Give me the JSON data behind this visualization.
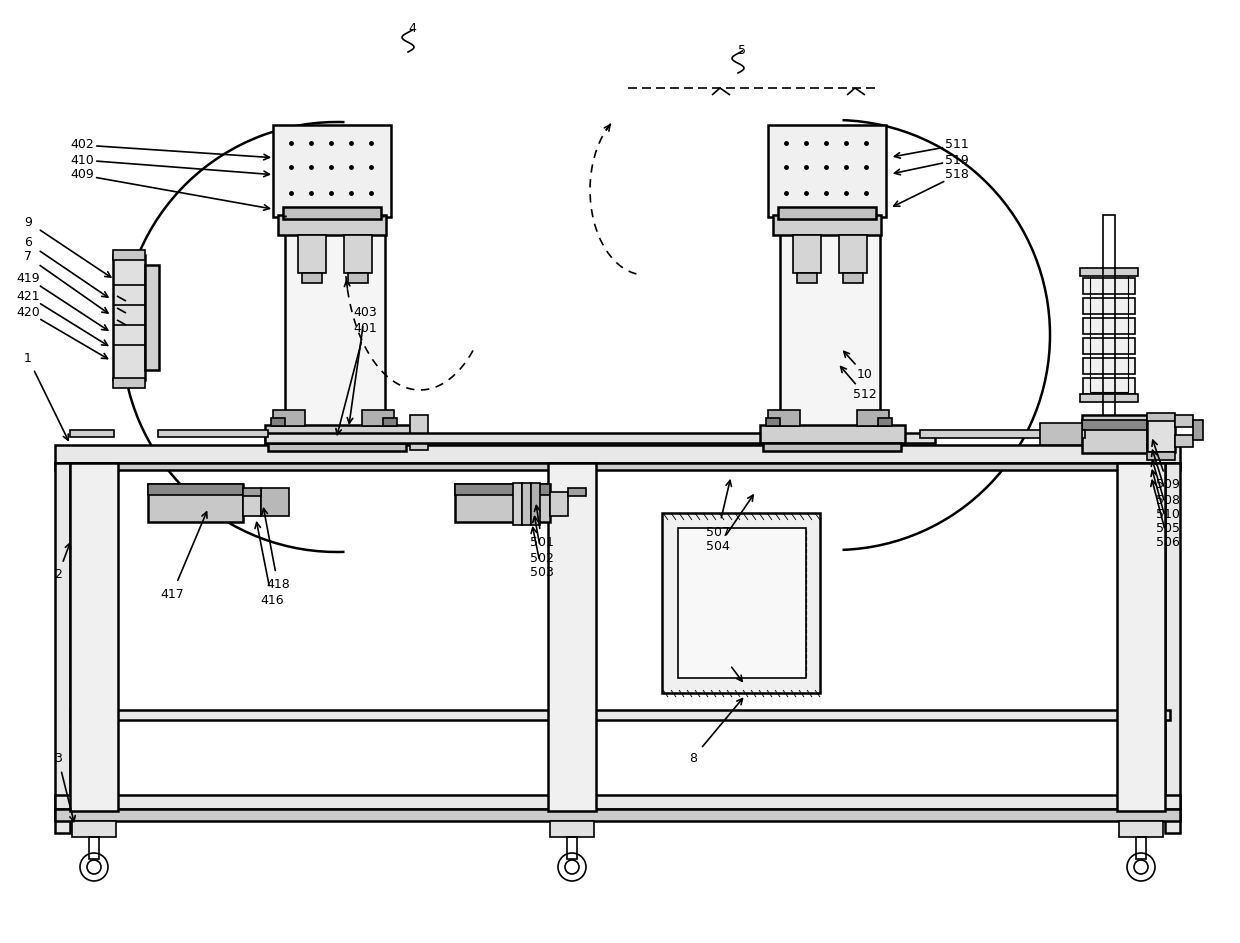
{
  "bg_color": "#ffffff",
  "line_color": "#000000",
  "line_width": 1.2,
  "fig_width": 12.4,
  "fig_height": 9.43
}
